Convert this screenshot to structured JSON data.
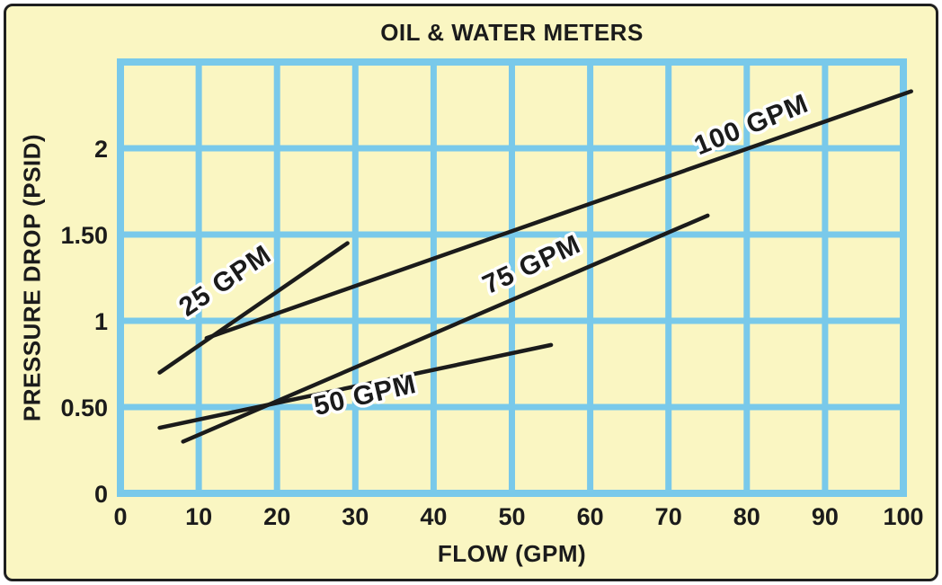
{
  "figure": {
    "title": "OIL & WATER METERS",
    "x_axis_label": "FLOW (GPM)",
    "y_axis_label": "PRESSURE DROP (PSID)"
  },
  "colors": {
    "background": "#FAF6C2",
    "grid": "#79C9EA",
    "series_line": "#1B1B1B",
    "text": "#1B1B1B",
    "label_halo": "#FFFFFF",
    "frame_border": "#1F1F1F"
  },
  "chart_data": {
    "type": "line",
    "title": "OIL & WATER METERS",
    "xlabel": "FLOW (GPM)",
    "ylabel": "PRESSURE DROP (PSID)",
    "units": {
      "x": "GPM",
      "y": "PSID"
    },
    "xlim": [
      0,
      100
    ],
    "ylim": [
      0,
      2.5
    ],
    "grid": true,
    "legend_position": "inline-labels",
    "x_ticks": [
      0,
      10,
      20,
      30,
      40,
      50,
      60,
      70,
      80,
      90,
      100
    ],
    "y_ticks": [
      {
        "value": 0,
        "label": "0"
      },
      {
        "value": 0.5,
        "label": "0.50"
      },
      {
        "value": 1,
        "label": "1"
      },
      {
        "value": 1.5,
        "label": "1.50"
      },
      {
        "value": 2,
        "label": "2"
      }
    ],
    "y_gridlines": [
      0,
      0.5,
      1,
      1.5,
      2,
      2.5
    ],
    "series": [
      {
        "name": "25 GPM",
        "points": [
          [
            5,
            0.7
          ],
          [
            29,
            1.45
          ]
        ],
        "label_pos": [
          14,
          1.19
        ],
        "label_angle_deg": -34
      },
      {
        "name": "50 GPM",
        "points": [
          [
            5,
            0.38
          ],
          [
            55,
            0.86
          ]
        ],
        "label_pos": [
          31.5,
          0.52
        ],
        "label_angle_deg": -13
      },
      {
        "name": "75 GPM",
        "points": [
          [
            8,
            0.3
          ],
          [
            75,
            1.61
          ]
        ],
        "label_pos": [
          53,
          1.28
        ],
        "label_angle_deg": -25
      },
      {
        "name": "100 GPM",
        "points": [
          [
            11,
            0.9
          ],
          [
            101,
            2.33
          ]
        ],
        "label_pos": [
          81,
          2.09
        ],
        "label_angle_deg": -22
      }
    ]
  }
}
